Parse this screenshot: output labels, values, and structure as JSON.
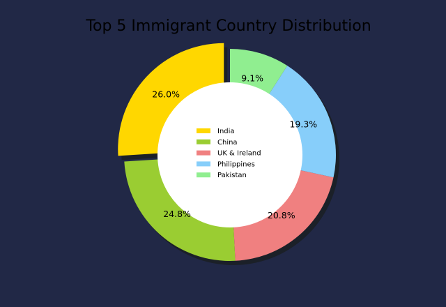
{
  "chart_data": {
    "type": "pie",
    "variant": "donut",
    "title": "Top 5 Immigrant Country Distribution",
    "categories": [
      "India",
      "China",
      "UK & Ireland",
      "Philippines",
      "Pakistan"
    ],
    "values": [
      26.0,
      24.8,
      20.8,
      19.3,
      9.1
    ],
    "value_labels": [
      "26.0%",
      "24.8%",
      "20.8%",
      "19.3%",
      "9.1%"
    ],
    "colors": [
      "#FFD700",
      "#9ACD32",
      "#F08080",
      "#87CEFA",
      "#90EE90"
    ],
    "exploded": [
      "India"
    ],
    "shadow": true,
    "start_angle_deg": 90,
    "direction": "counterclockwise",
    "legend_location": "center",
    "background_color": "#212846"
  }
}
